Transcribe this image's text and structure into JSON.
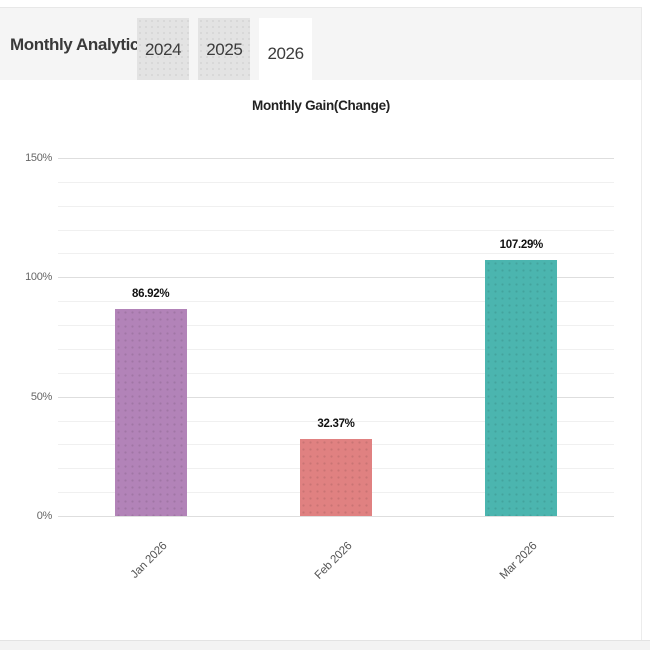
{
  "header": {
    "title": "Monthly Analytics",
    "tabs": [
      {
        "label": "2024",
        "active": false
      },
      {
        "label": "2025",
        "active": false
      },
      {
        "label": "2026",
        "active": true
      }
    ]
  },
  "chart_data": {
    "type": "bar",
    "title": "Monthly Gain(Change)",
    "categories": [
      "Jan 2026",
      "Feb 2026",
      "Mar 2026"
    ],
    "values": [
      86.92,
      32.37,
      107.29
    ],
    "value_labels": [
      "86.92%",
      "32.37%",
      "107.29%"
    ],
    "bar_colors": [
      "#b283b8",
      "#e08181",
      "#4bb5af"
    ],
    "ylim": [
      0,
      150
    ],
    "ytick_major_step": 50,
    "ytick_minor_step": 10,
    "ytick_labels": [
      "0%",
      "50%",
      "100%",
      "150%"
    ],
    "grid": true,
    "legend": false,
    "xlabel": "",
    "ylabel": ""
  },
  "colors": {
    "header_bg": "#f5f5f5",
    "tab_inactive_bg": "#e3e3e3",
    "tab_active_bg": "#ffffff",
    "grid_major": "#dedede",
    "grid_minor": "#f0f0f0",
    "axis_text": "#666666",
    "value_text": "#111111"
  }
}
